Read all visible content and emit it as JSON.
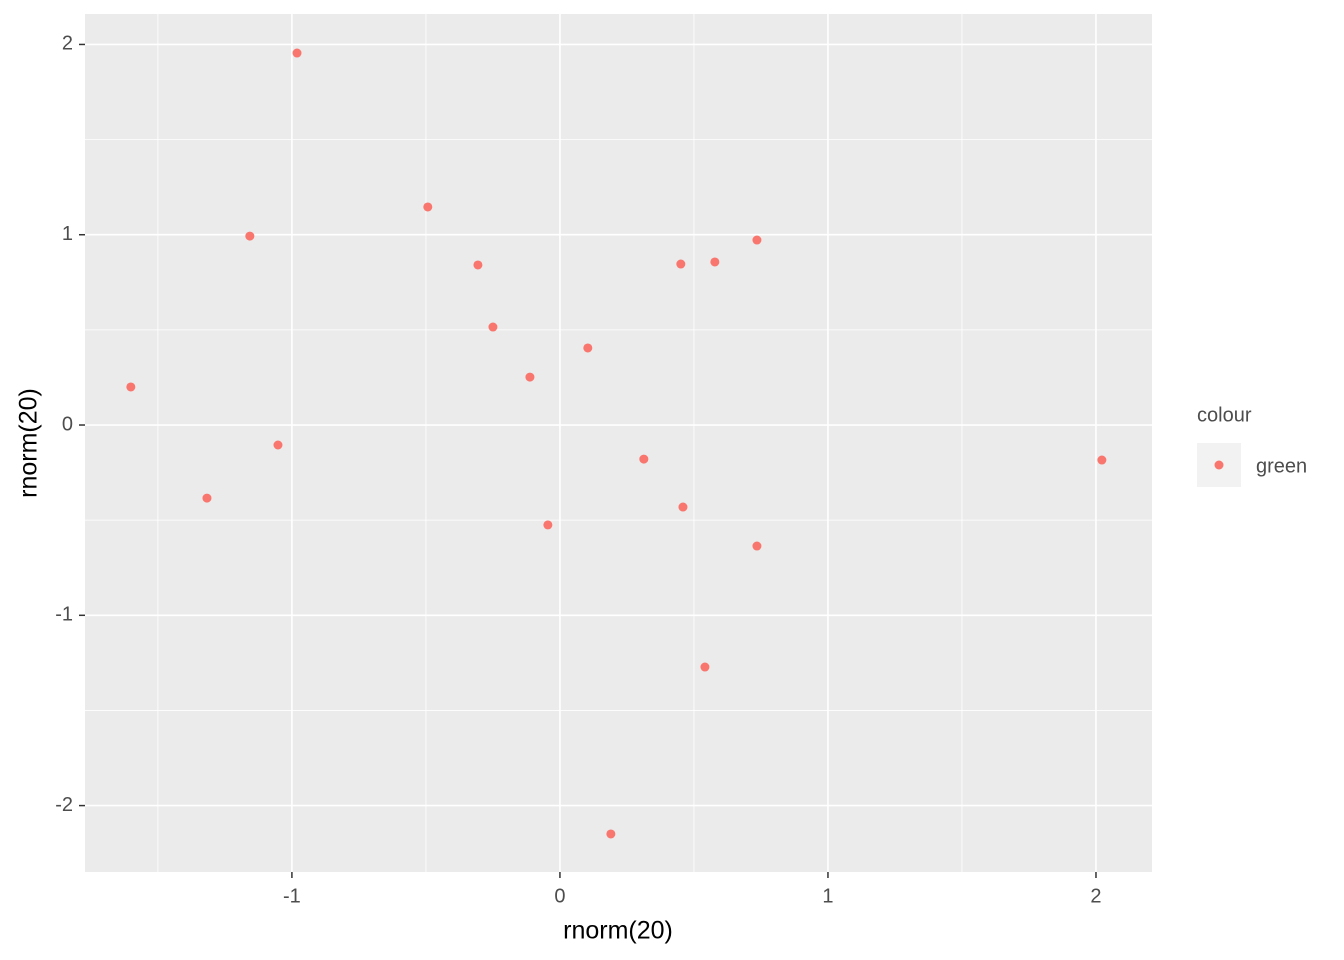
{
  "chart_data": {
    "type": "scatter",
    "x_label": "rnorm(20)",
    "y_label": "rnorm(20)",
    "legend_title": "colour",
    "series": [
      {
        "name": "green",
        "color": "#F8766D",
        "x": [
          -1.601,
          -0.981,
          -1.157,
          -0.493,
          -0.306,
          -0.25,
          -0.112,
          0.104,
          0.451,
          0.578,
          0.735,
          -1.052,
          -1.317,
          -0.045,
          0.313,
          0.459,
          0.735,
          0.541,
          0.19,
          2.022
        ],
        "y": [
          0.2,
          1.955,
          0.993,
          1.146,
          0.841,
          0.515,
          0.252,
          0.405,
          0.846,
          0.857,
          0.972,
          -0.105,
          -0.384,
          -0.525,
          -0.179,
          -0.431,
          -0.636,
          -1.272,
          -2.149,
          -0.184
        ]
      }
    ],
    "xlim": [
      -1.772,
      2.209
    ],
    "ylim": [
      -2.349,
      2.16
    ],
    "xticks": [
      -1,
      0,
      1,
      2
    ],
    "yticks": [
      -2,
      -1,
      0,
      1,
      2
    ],
    "grid": true,
    "legend_position": "right"
  }
}
